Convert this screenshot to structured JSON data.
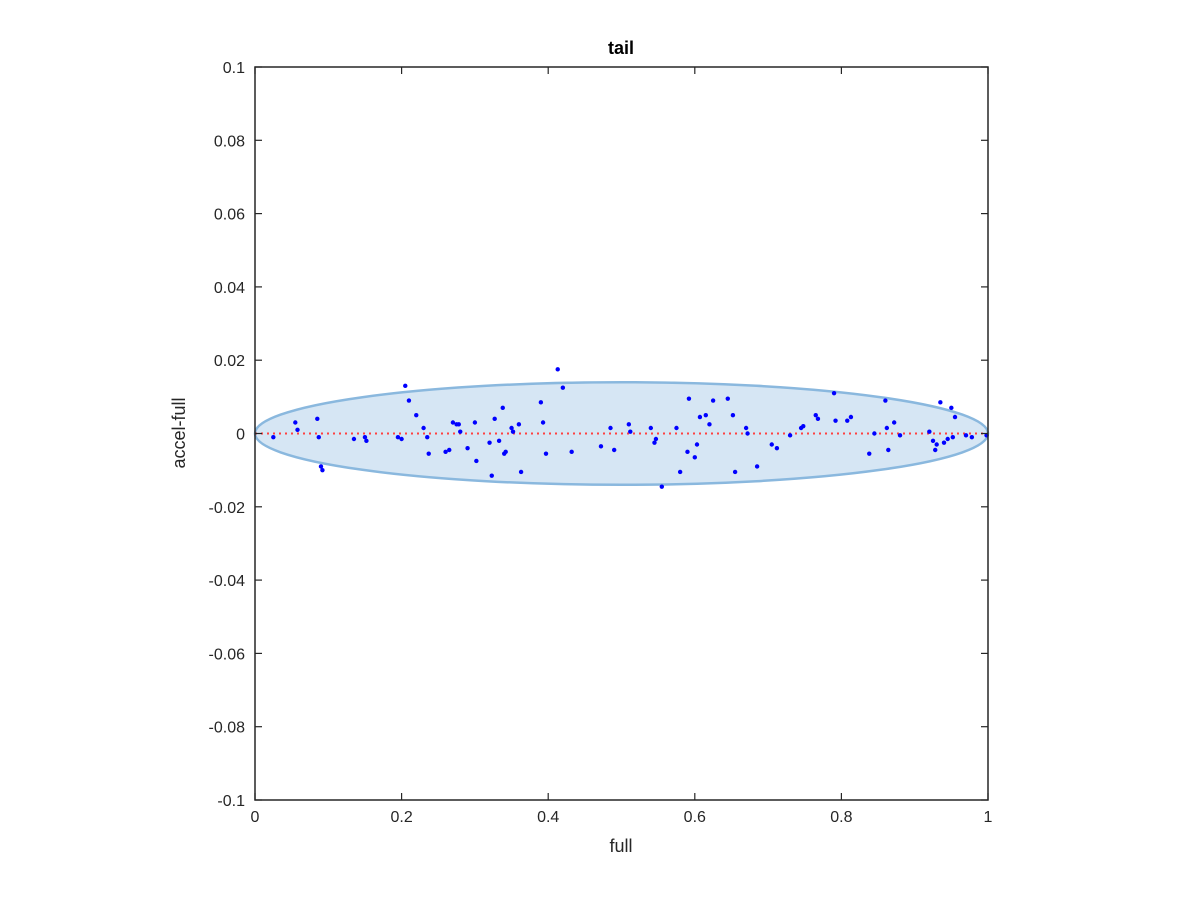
{
  "chart_data": {
    "type": "scatter",
    "title": "tail",
    "xlabel": "full",
    "ylabel": "accel-full",
    "xlim": [
      0,
      1
    ],
    "ylim": [
      -0.1,
      0.1
    ],
    "xticks": [
      "0",
      "0.2",
      "0.4",
      "0.6",
      "0.8",
      "1"
    ],
    "xtick_values": [
      0,
      0.2,
      0.4,
      0.6,
      0.8,
      1
    ],
    "yticks": [
      "-0.1",
      "-0.08",
      "-0.06",
      "-0.04",
      "-0.02",
      "0",
      "0.02",
      "0.04",
      "0.06",
      "0.08",
      "0.1"
    ],
    "ytick_values": [
      -0.1,
      -0.08,
      -0.06,
      -0.04,
      -0.02,
      0,
      0.02,
      0.04,
      0.06,
      0.08,
      0.1
    ],
    "grid": false,
    "colors": {
      "points": "#0000ff",
      "reference_line": "#ff4040",
      "ellipse_fill": "#d6e6f4",
      "ellipse_stroke": "#8ab8de",
      "axes": "#262626"
    },
    "reference_line": {
      "y": 0,
      "x_range": [
        0,
        1
      ],
      "style": "dotted"
    },
    "ellipse": {
      "center": [
        0.5,
        0
      ],
      "x_radius": 0.5,
      "y_radius": 0.014
    },
    "points": [
      {
        "x": 0.025,
        "y": -0.001
      },
      {
        "x": 0.055,
        "y": 0.003
      },
      {
        "x": 0.058,
        "y": 0.001
      },
      {
        "x": 0.085,
        "y": 0.004
      },
      {
        "x": 0.087,
        "y": -0.001
      },
      {
        "x": 0.09,
        "y": -0.009
      },
      {
        "x": 0.092,
        "y": -0.01
      },
      {
        "x": 0.135,
        "y": -0.0015
      },
      {
        "x": 0.15,
        "y": -0.001
      },
      {
        "x": 0.152,
        "y": -0.002
      },
      {
        "x": 0.195,
        "y": -0.001
      },
      {
        "x": 0.2,
        "y": -0.0015
      },
      {
        "x": 0.205,
        "y": 0.013
      },
      {
        "x": 0.21,
        "y": 0.009
      },
      {
        "x": 0.22,
        "y": 0.005
      },
      {
        "x": 0.23,
        "y": 0.0015
      },
      {
        "x": 0.235,
        "y": -0.001
      },
      {
        "x": 0.237,
        "y": -0.0055
      },
      {
        "x": 0.26,
        "y": -0.005
      },
      {
        "x": 0.265,
        "y": -0.0045
      },
      {
        "x": 0.27,
        "y": 0.003
      },
      {
        "x": 0.275,
        "y": 0.0025
      },
      {
        "x": 0.278,
        "y": 0.0025
      },
      {
        "x": 0.28,
        "y": 0.0005
      },
      {
        "x": 0.29,
        "y": -0.004
      },
      {
        "x": 0.3,
        "y": 0.003
      },
      {
        "x": 0.302,
        "y": -0.0075
      },
      {
        "x": 0.32,
        "y": -0.0025
      },
      {
        "x": 0.323,
        "y": -0.0115
      },
      {
        "x": 0.327,
        "y": 0.004
      },
      {
        "x": 0.333,
        "y": -0.002
      },
      {
        "x": 0.338,
        "y": 0.007
      },
      {
        "x": 0.34,
        "y": -0.0055
      },
      {
        "x": 0.342,
        "y": -0.005
      },
      {
        "x": 0.35,
        "y": 0.0015
      },
      {
        "x": 0.352,
        "y": 0.0005
      },
      {
        "x": 0.36,
        "y": 0.0025
      },
      {
        "x": 0.363,
        "y": -0.0105
      },
      {
        "x": 0.39,
        "y": 0.0085
      },
      {
        "x": 0.393,
        "y": 0.003
      },
      {
        "x": 0.397,
        "y": -0.0055
      },
      {
        "x": 0.413,
        "y": 0.0175
      },
      {
        "x": 0.42,
        "y": 0.0125
      },
      {
        "x": 0.432,
        "y": -0.005
      },
      {
        "x": 0.472,
        "y": -0.0035
      },
      {
        "x": 0.485,
        "y": 0.0015
      },
      {
        "x": 0.49,
        "y": -0.0045
      },
      {
        "x": 0.51,
        "y": 0.0025
      },
      {
        "x": 0.512,
        "y": 0.0005
      },
      {
        "x": 0.54,
        "y": 0.0015
      },
      {
        "x": 0.545,
        "y": -0.0025
      },
      {
        "x": 0.547,
        "y": -0.0015
      },
      {
        "x": 0.555,
        "y": -0.0145
      },
      {
        "x": 0.575,
        "y": 0.0015
      },
      {
        "x": 0.58,
        "y": -0.0105
      },
      {
        "x": 0.59,
        "y": -0.005
      },
      {
        "x": 0.592,
        "y": 0.0095
      },
      {
        "x": 0.6,
        "y": -0.0065
      },
      {
        "x": 0.603,
        "y": -0.003
      },
      {
        "x": 0.607,
        "y": 0.0045
      },
      {
        "x": 0.615,
        "y": 0.005
      },
      {
        "x": 0.62,
        "y": 0.0025
      },
      {
        "x": 0.625,
        "y": 0.009
      },
      {
        "x": 0.645,
        "y": 0.0095
      },
      {
        "x": 0.652,
        "y": 0.005
      },
      {
        "x": 0.655,
        "y": -0.0105
      },
      {
        "x": 0.67,
        "y": 0.0015
      },
      {
        "x": 0.672,
        "y": 0.0
      },
      {
        "x": 0.685,
        "y": -0.009
      },
      {
        "x": 0.705,
        "y": -0.003
      },
      {
        "x": 0.712,
        "y": -0.004
      },
      {
        "x": 0.73,
        "y": -0.0005
      },
      {
        "x": 0.745,
        "y": 0.0015
      },
      {
        "x": 0.748,
        "y": 0.002
      },
      {
        "x": 0.765,
        "y": 0.005
      },
      {
        "x": 0.768,
        "y": 0.004
      },
      {
        "x": 0.79,
        "y": 0.011
      },
      {
        "x": 0.792,
        "y": 0.0035
      },
      {
        "x": 0.808,
        "y": 0.0035
      },
      {
        "x": 0.813,
        "y": 0.0045
      },
      {
        "x": 0.838,
        "y": -0.0055
      },
      {
        "x": 0.845,
        "y": 0.0
      },
      {
        "x": 0.86,
        "y": 0.009
      },
      {
        "x": 0.862,
        "y": 0.0015
      },
      {
        "x": 0.864,
        "y": -0.0045
      },
      {
        "x": 0.872,
        "y": 0.003
      },
      {
        "x": 0.88,
        "y": -0.0005
      },
      {
        "x": 0.92,
        "y": 0.0005
      },
      {
        "x": 0.925,
        "y": -0.002
      },
      {
        "x": 0.928,
        "y": -0.0045
      },
      {
        "x": 0.93,
        "y": -0.003
      },
      {
        "x": 0.935,
        "y": 0.0085
      },
      {
        "x": 0.94,
        "y": -0.0025
      },
      {
        "x": 0.945,
        "y": -0.0015
      },
      {
        "x": 0.95,
        "y": 0.007
      },
      {
        "x": 0.952,
        "y": -0.001
      },
      {
        "x": 0.955,
        "y": 0.0045
      },
      {
        "x": 0.97,
        "y": -0.0005
      },
      {
        "x": 0.978,
        "y": -0.001
      },
      {
        "x": 0.998,
        "y": -0.0005
      }
    ]
  }
}
